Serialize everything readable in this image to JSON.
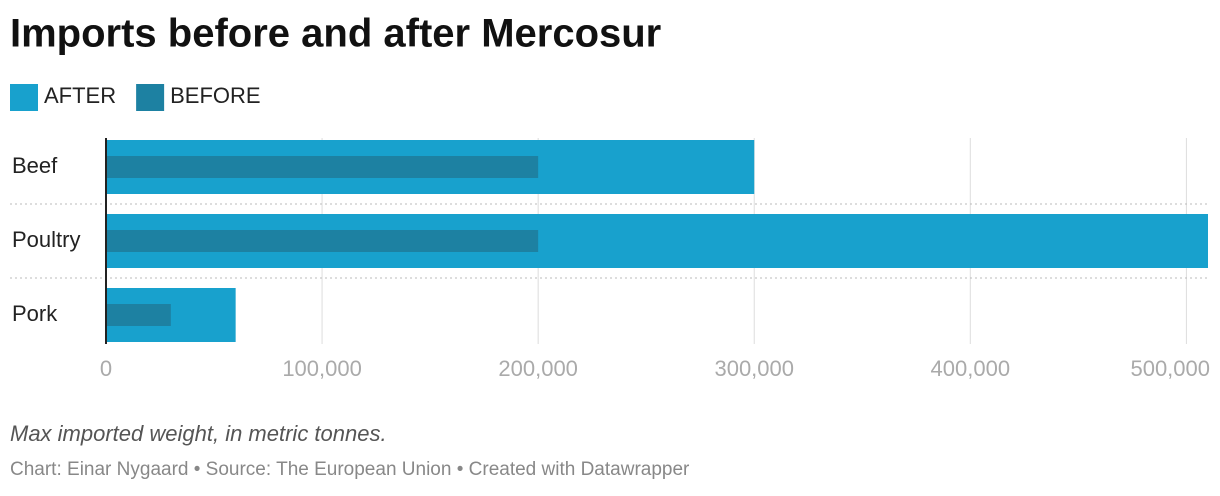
{
  "chart_data": {
    "type": "bar",
    "orientation": "horizontal",
    "overlap": true,
    "title": "Imports before and after Mercosur",
    "subtitle": "Max imported weight, in metric tonnes.",
    "footer": "Chart: Einar Nygaard • Source: The European Union • Created with Datawrapper",
    "categories": [
      "Beef",
      "Poultry",
      "Pork"
    ],
    "series": [
      {
        "name": "AFTER",
        "color": "#18a1cd",
        "values": [
          300000,
          510000,
          60000
        ]
      },
      {
        "name": "BEFORE",
        "color": "#1d81a2",
        "values": [
          200000,
          200000,
          30000
        ]
      }
    ],
    "xlim": [
      0,
      510000
    ],
    "xticks": [
      0,
      {
        "value": 100000,
        "label": "100,000"
      },
      {
        "value": 200000,
        "label": "200,000"
      },
      {
        "value": 300000,
        "label": "300,000"
      },
      {
        "value": 400000,
        "label": "400,000"
      },
      {
        "value": 500000,
        "label": "500,000"
      }
    ],
    "grid": true
  }
}
